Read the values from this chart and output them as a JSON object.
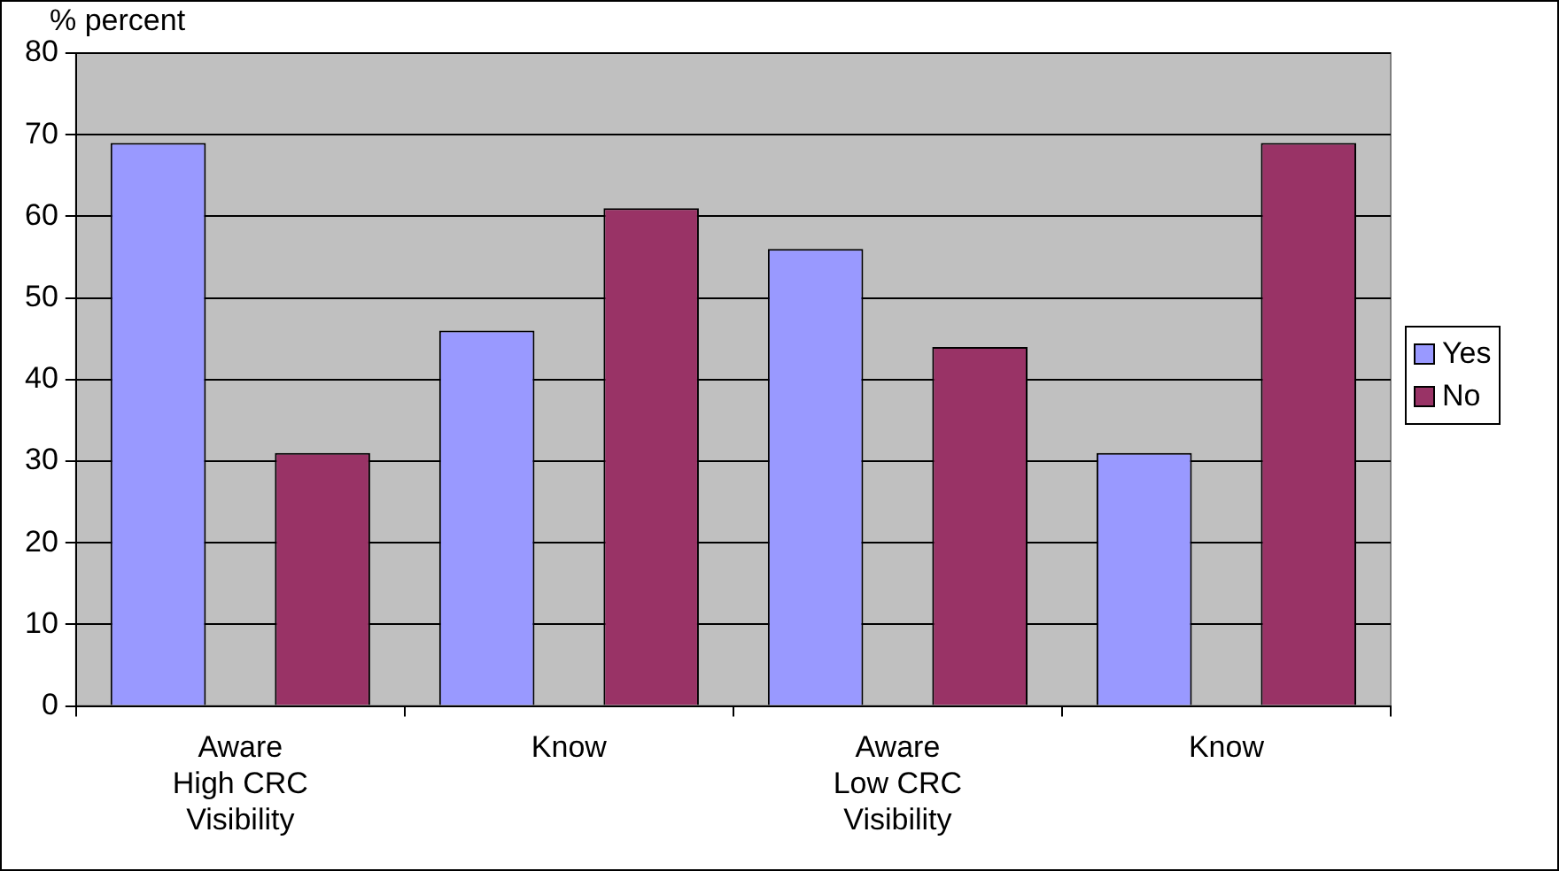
{
  "chart_data": {
    "type": "bar",
    "ylabel": "% percent",
    "categories": [
      "Aware\nHigh CRC\nVisibility",
      "Know",
      "Aware\nLow CRC\nVisibility",
      "Know"
    ],
    "series": [
      {
        "name": "Yes",
        "color": "#9999ff",
        "values": [
          69,
          46,
          56,
          31
        ]
      },
      {
        "name": "No",
        "color": "#993366",
        "values": [
          31,
          61,
          44,
          69
        ]
      }
    ],
    "ylim": [
      0,
      80
    ],
    "yticks": [
      0,
      10,
      20,
      30,
      40,
      50,
      60,
      70,
      80
    ],
    "grid": "y",
    "legend": "right"
  }
}
